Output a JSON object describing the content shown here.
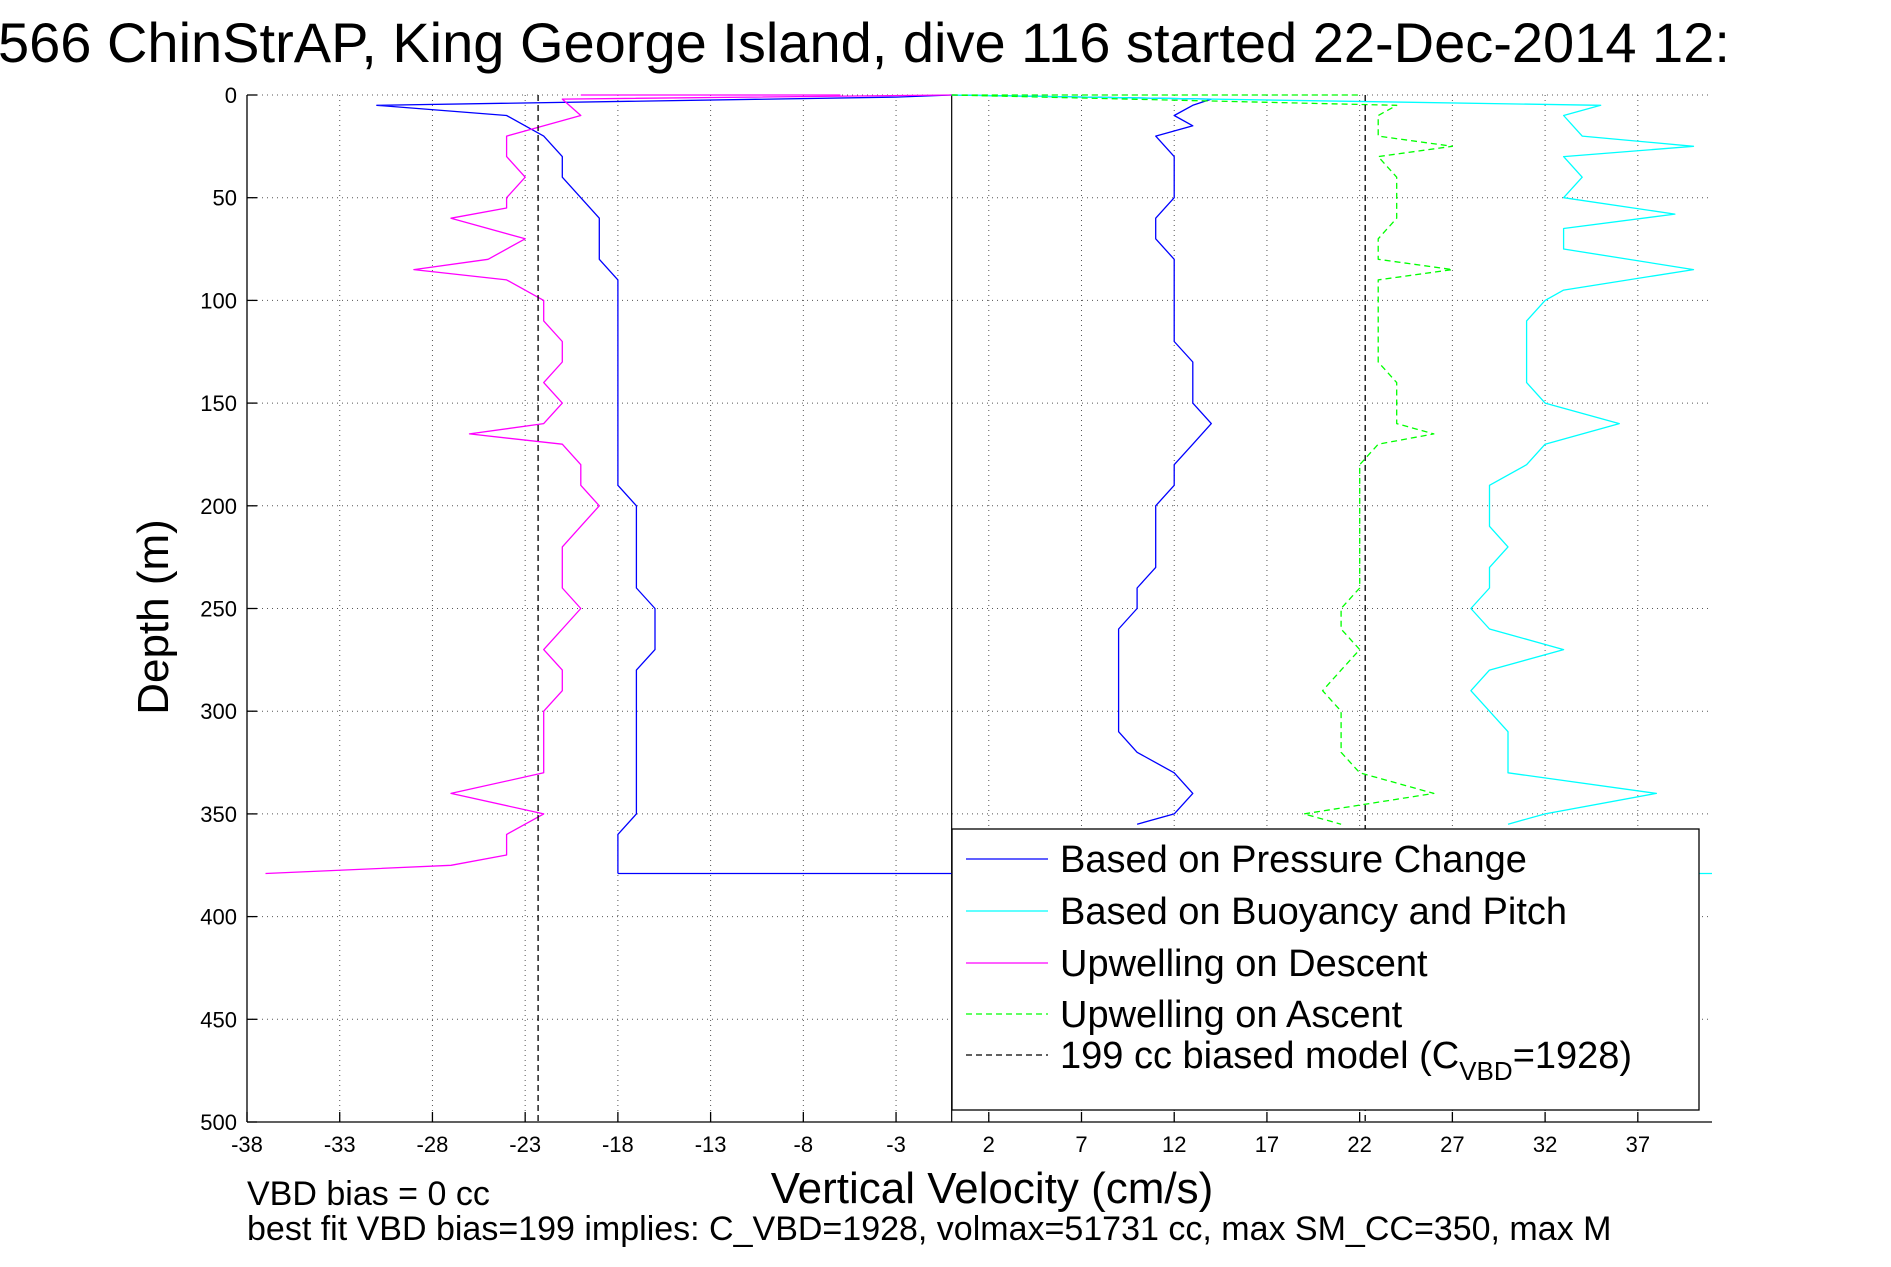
{
  "chart_data": {
    "type": "line",
    "title": "566 ChinStrAP, King George Island, dive 116 started 22-Dec-2014 12:",
    "xlabel": "Vertical Velocity (cm/s)",
    "ylabel": "Depth (m)",
    "xlim": [
      -38,
      41
    ],
    "ylim": [
      0,
      500
    ],
    "y_reversed": true,
    "grid": "dotted",
    "x_ticks": [
      -38,
      -33,
      -28,
      -23,
      -18,
      -13,
      -8,
      -3,
      2,
      7,
      12,
      17,
      22,
      27,
      32,
      37
    ],
    "y_ticks": [
      0,
      50,
      100,
      150,
      200,
      250,
      300,
      350,
      400,
      450,
      500
    ],
    "legend_position": "lower-right",
    "series": [
      {
        "name": "Based on Pressure Change",
        "color": "#0000ff",
        "style": "solid",
        "segments": [
          {
            "depth": [
              0,
              1,
              5,
              10,
              20,
              30,
              40,
              50,
              60,
              70,
              80,
              90,
              100,
              110,
              120,
              130,
              140,
              150,
              160,
              170,
              180,
              190,
              200,
              210,
              220,
              230,
              240,
              250,
              260,
              270,
              280,
              290,
              300,
              310,
              320,
              330,
              340,
              350,
              360,
              370,
              379
            ],
            "velocity": [
              0,
              -3,
              -31,
              -24,
              -22,
              -21,
              -21,
              -20,
              -19,
              -19,
              -19,
              -18,
              -18,
              -18,
              -18,
              -18,
              -18,
              -18,
              -18,
              -18,
              -18,
              -18,
              -17,
              -17,
              -17,
              -17,
              -17,
              -16,
              -16,
              -16,
              -17,
              -17,
              -17,
              -17,
              -17,
              -17,
              -17,
              -17,
              -18,
              -18,
              -18
            ]
          },
          {
            "depth": [
              379,
              379
            ],
            "velocity": [
              -18,
              0
            ]
          },
          {
            "depth": [
              0,
              2,
              5,
              10,
              15,
              20,
              30,
              40,
              50,
              60,
              70,
              80,
              90,
              100,
              110,
              120,
              130,
              140,
              150,
              160,
              170,
              180,
              190,
              200,
              210,
              220,
              230,
              240,
              250,
              260,
              270,
              280,
              290,
              300,
              310,
              320,
              330,
              340,
              350,
              355
            ],
            "velocity": [
              0,
              14,
              13,
              12,
              13,
              11,
              12,
              12,
              12,
              11,
              11,
              12,
              12,
              12,
              12,
              12,
              13,
              13,
              13,
              14,
              13,
              12,
              12,
              11,
              11,
              11,
              11,
              10,
              10,
              9,
              9,
              9,
              9,
              9,
              9,
              10,
              12,
              13,
              12,
              10
            ]
          }
        ]
      },
      {
        "name": "Based on Buoyancy and Pitch",
        "color": "#00ffff",
        "style": "solid",
        "segments": [
          {
            "depth": [
              0,
              5,
              10,
              20,
              25,
              30,
              40,
              50,
              58,
              65,
              75,
              85,
              95,
              100,
              110,
              120,
              130,
              140,
              150,
              160,
              170,
              180,
              190,
              200,
              210,
              220,
              230,
              240,
              250,
              260,
              270,
              280,
              290,
              300,
              310,
              320,
              330,
              340,
              350,
              355
            ],
            "velocity": [
              0,
              35,
              33,
              34,
              40,
              33,
              34,
              33,
              39,
              33,
              33,
              40,
              33,
              32,
              31,
              31,
              31,
              31,
              32,
              36,
              32,
              31,
              29,
              29,
              29,
              30,
              29,
              29,
              28,
              29,
              33,
              29,
              28,
              29,
              30,
              30,
              30,
              38,
              32,
              30
            ]
          },
          {
            "depth": [
              379,
              379
            ],
            "velocity": [
              32,
              41
            ]
          }
        ]
      },
      {
        "name": "Upwelling on Descent",
        "color": "#ff00ff",
        "style": "solid",
        "segments": [
          {
            "depth": [
              0,
              2,
              10,
              20,
              30,
              40,
              50,
              55,
              60,
              70,
              80,
              85,
              90,
              100,
              110,
              120,
              130,
              140,
              150,
              160,
              165,
              170,
              180,
              190,
              200,
              210,
              220,
              230,
              240,
              250,
              260,
              270,
              280,
              290,
              300,
              310,
              320,
              330,
              340,
              350,
              360,
              370,
              375,
              379
            ],
            "velocity": [
              0,
              -21,
              -20,
              -24,
              -24,
              -23,
              -24,
              -24,
              -27,
              -23,
              -25,
              -29,
              -24,
              -22,
              -22,
              -21,
              -21,
              -22,
              -21,
              -22,
              -26,
              -21,
              -20,
              -20,
              -19,
              -20,
              -21,
              -21,
              -21,
              -20,
              -21,
              -22,
              -21,
              -21,
              -22,
              -22,
              -22,
              -22,
              -27,
              -22,
              -24,
              -24,
              -27,
              -37
            ]
          },
          {
            "depth": [
              0,
              0
            ],
            "velocity": [
              -20,
              -6
            ]
          }
        ]
      },
      {
        "name": "Upwelling on Ascent",
        "color": "#00ff00",
        "style": "dashed",
        "segments": [
          {
            "depth": [
              0,
              5,
              10,
              20,
              25,
              30,
              40,
              50,
              60,
              70,
              80,
              85,
              90,
              100,
              110,
              120,
              130,
              140,
              150,
              160,
              165,
              170,
              180,
              190,
              200,
              210,
              220,
              230,
              240,
              250,
              260,
              270,
              280,
              290,
              300,
              310,
              320,
              330,
              340,
              350,
              355
            ],
            "velocity": [
              0,
              24,
              23,
              23,
              27,
              23,
              24,
              24,
              24,
              23,
              23,
              27,
              23,
              23,
              23,
              23,
              23,
              24,
              24,
              24,
              26,
              23,
              22,
              22,
              22,
              22,
              22,
              22,
              22,
              21,
              21,
              22,
              21,
              20,
              21,
              21,
              21,
              22,
              26,
              19,
              21
            ]
          },
          {
            "depth": [
              0,
              0
            ],
            "velocity": [
              0,
              22
            ]
          }
        ]
      },
      {
        "name": "199 cc biased model",
        "legend_label": {
          "main": "199 cc biased model (C",
          "sub": "VBD",
          "tail": "=1928)"
        },
        "color": "#000000",
        "style": "dashed",
        "segments": [
          {
            "depth": [
              0,
              500
            ],
            "velocity": [
              -22.3,
              -22.3
            ]
          },
          {
            "depth": [
              0,
              500
            ],
            "velocity": [
              22.3,
              22.3
            ]
          }
        ]
      }
    ],
    "reference_lines": [
      {
        "orientation": "vertical",
        "x": 0,
        "color": "#000000"
      }
    ]
  },
  "footer": {
    "line1": "VBD bias = 0 cc",
    "line2": "best fit VBD bias=199 implies: C_VBD=1928, volmax=51731 cc, max SM_CC=350, max M"
  }
}
